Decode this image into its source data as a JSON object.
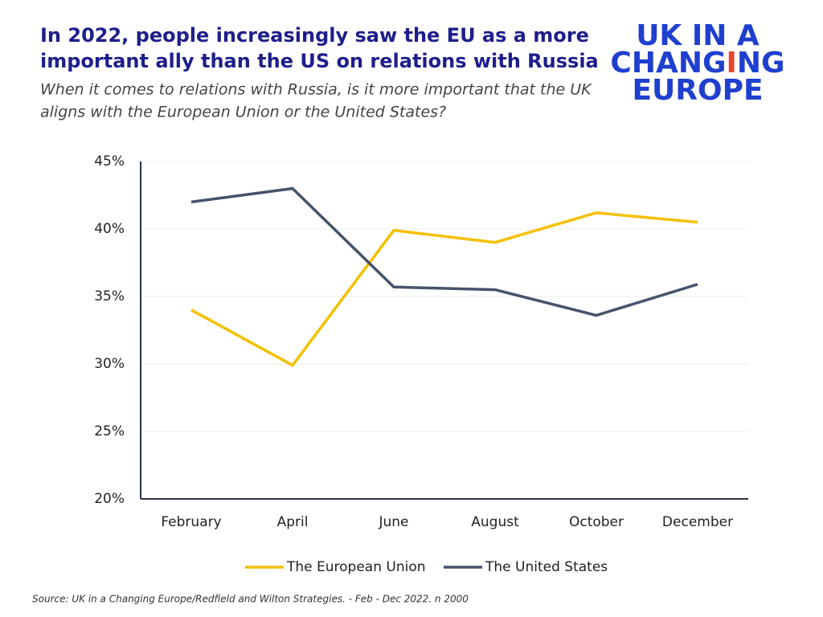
{
  "chart_data": {
    "type": "line",
    "title": [
      "In 2022, people increasingly saw the EU as a more",
      "important ally than the US on relations with Russia"
    ],
    "subtitle": [
      "When it comes to relations with Russia, is it more important that the UK",
      "aligns with the European Union or the United States?"
    ],
    "logo": {
      "line1": "UK IN A",
      "line2": [
        "CHANG",
        "I",
        "NG"
      ],
      "line3": "EUROPE"
    },
    "source": "Source: UK in a Changing Europe/Redfield and Wilton Strategies. -  Feb - Dec 2022. n 2000",
    "categories": [
      "February",
      "April",
      "June",
      "August",
      "October",
      "December"
    ],
    "series": [
      {
        "name": "The European Union",
        "color": "#f5c000",
        "values": [
          34.0,
          29.9,
          39.9,
          39.0,
          41.2,
          40.5
        ]
      },
      {
        "name": "The United States",
        "color": "#44546a",
        "values": [
          42.0,
          43.0,
          35.7,
          35.5,
          33.6,
          35.9
        ]
      }
    ],
    "ylim": [
      20,
      45
    ],
    "yticks": [
      {
        "value": 20,
        "label": "20%"
      },
      {
        "value": 25,
        "label": "25%"
      },
      {
        "value": 30,
        "label": "30%"
      },
      {
        "value": 35,
        "label": "35%"
      },
      {
        "value": 40,
        "label": "40%"
      },
      {
        "value": 45,
        "label": "45%"
      }
    ],
    "grid": true,
    "legend": "bottom"
  }
}
